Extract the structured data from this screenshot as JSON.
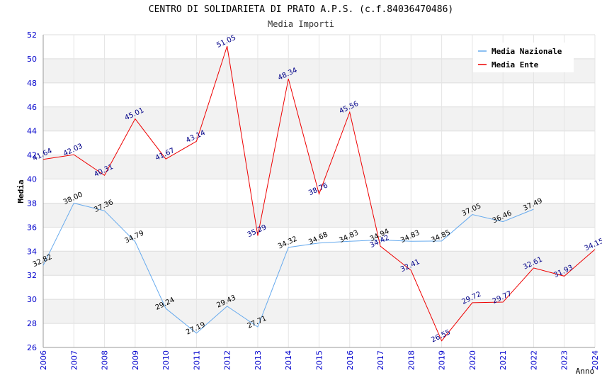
{
  "title": "CENTRO DI SOLIDARIETA DI PRATO A.P.S. (c.f.84036470486)",
  "subtitle": "Media Importi",
  "chart_data": {
    "type": "line",
    "title": "CENTRO DI SOLIDARIETA DI PRATO A.P.S. (c.f.84036470486)",
    "subtitle": "Media Importi",
    "xlabel": "Anno",
    "ylabel": "Media",
    "ylim": [
      26,
      52
    ],
    "yticks": [
      26,
      28,
      30,
      32,
      34,
      36,
      38,
      40,
      42,
      44,
      46,
      48,
      50,
      52
    ],
    "categories": [
      "2006",
      "2007",
      "2008",
      "2009",
      "2010",
      "2011",
      "2012",
      "2013",
      "2014",
      "2015",
      "2016",
      "2017",
      "2018",
      "2019",
      "2020",
      "2021",
      "2022",
      "2023",
      "2024"
    ],
    "legend_position": "top-right",
    "grid": true,
    "series": [
      {
        "name": "Media Nazionale",
        "color": "#66aaee",
        "label_color": "#000000",
        "values": [
          32.82,
          38.0,
          37.36,
          34.79,
          29.24,
          27.19,
          29.43,
          27.71,
          34.32,
          34.68,
          34.83,
          34.94,
          34.83,
          34.85,
          37.05,
          36.46,
          37.49,
          null,
          null
        ],
        "labels": [
          "32.82",
          "38.00",
          "37.36",
          "34.79",
          "29.24",
          "27.19",
          "29.43",
          "27.71",
          "34.32",
          "34.68",
          "34.83",
          "34.94",
          "34.83",
          "34.85",
          "37.05",
          "36.46",
          "37.49",
          null,
          null
        ]
      },
      {
        "name": "Media Ente",
        "color": "#ee0000",
        "label_color": "#000088",
        "values": [
          41.64,
          42.03,
          40.31,
          45.01,
          41.67,
          43.14,
          51.05,
          35.29,
          48.34,
          38.76,
          45.56,
          34.42,
          32.41,
          26.55,
          29.72,
          29.77,
          32.61,
          31.93,
          34.15
        ],
        "labels": [
          "41.64",
          "42.03",
          "40.31",
          "45.01",
          "41.67",
          "43.14",
          "51.05",
          "35.29",
          "48.34",
          "38.76",
          "45.56",
          "34.42",
          "32.41",
          "26.55",
          "29.72",
          "29.77",
          "32.61",
          "31.93",
          "34.15"
        ]
      }
    ]
  }
}
